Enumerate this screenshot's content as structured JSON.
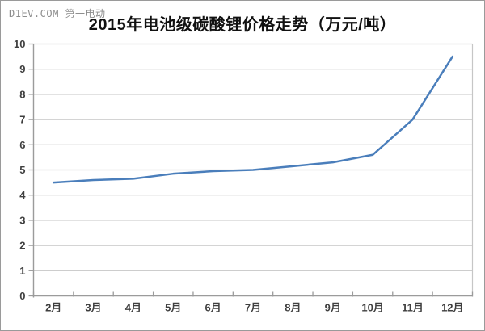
{
  "watermark": {
    "text": "D1EV.COM 第一电动"
  },
  "chart_data": {
    "type": "line",
    "title": "2015年电池级碳酸锂价格走势（万元/吨）",
    "xlabel": "",
    "ylabel": "",
    "categories": [
      "2月",
      "3月",
      "4月",
      "5月",
      "6月",
      "7月",
      "8月",
      "9月",
      "10月",
      "11月",
      "12月"
    ],
    "values": [
      4.5,
      4.6,
      4.65,
      4.85,
      4.95,
      5.0,
      5.15,
      5.3,
      5.6,
      7.0,
      9.5
    ],
    "ylim": [
      0,
      10
    ],
    "yticks": [
      0,
      1,
      2,
      3,
      4,
      5,
      6,
      7,
      8,
      9,
      10
    ],
    "grid": "horizontal",
    "legend": "none",
    "colors": {
      "line": "#4a7ebb",
      "gridline": "#c6c6c6",
      "axis": "#9b9b9b",
      "tick_label": "#3f3f3f",
      "title": "#111111",
      "watermark": "#8c8c8c",
      "background": "#ffffff"
    }
  }
}
